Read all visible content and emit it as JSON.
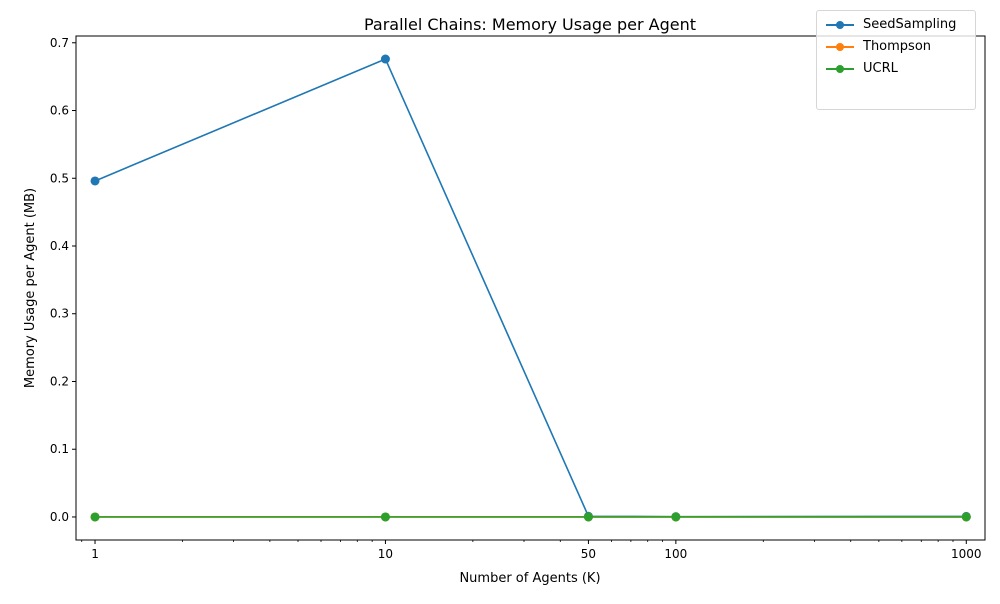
{
  "chart_data": {
    "type": "line",
    "title": "Parallel Chains: Memory Usage per Agent",
    "xlabel": "Number of Agents (K)",
    "ylabel": "Memory Usage per Agent (MB)",
    "x_scale": "log",
    "x": [
      1,
      10,
      50,
      100,
      1000
    ],
    "x_tick_labels": [
      "1",
      "10",
      "50",
      "100",
      "1000"
    ],
    "xlim": [
      0.86,
      1160
    ],
    "ylim": [
      -0.034,
      0.71
    ],
    "y_ticks": [
      0.0,
      0.1,
      0.2,
      0.3,
      0.4,
      0.5,
      0.6,
      0.7
    ],
    "y_tick_labels": [
      "0.0",
      "0.1",
      "0.2",
      "0.3",
      "0.4",
      "0.5",
      "0.6",
      "0.7"
    ],
    "grid": false,
    "legend_position": "top-right",
    "series": [
      {
        "name": "SeedSampling",
        "color": "#1f77b4",
        "values": [
          0.496,
          0.676,
          0.001,
          0.0005,
          0.0008
        ]
      },
      {
        "name": "Thompson",
        "color": "#ff7f0e",
        "values": [
          0.0,
          0.0,
          0.0,
          0.0,
          0.0
        ]
      },
      {
        "name": "UCRL",
        "color": "#2ca02c",
        "values": [
          0.0,
          0.0,
          0.0,
          0.0,
          0.0
        ]
      }
    ]
  }
}
